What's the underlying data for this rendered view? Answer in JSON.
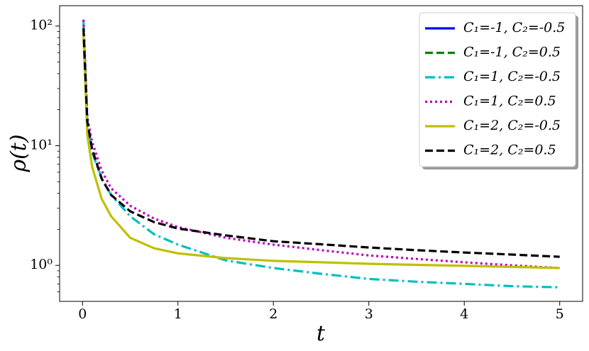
{
  "chart_data": {
    "type": "line",
    "x_label": "t",
    "y_label": "ρ(t)",
    "x": [
      0.01,
      0.05,
      0.1,
      0.2,
      0.3,
      0.5,
      0.75,
      1,
      1.5,
      2,
      2.5,
      3,
      3.5,
      4,
      4.5,
      5
    ],
    "series": [
      {
        "name": "C₁=-1, C₂=-0.5",
        "color": "#0000ff",
        "linestyle": "solid",
        "values": [
          null,
          null,
          null,
          null,
          null,
          null,
          null,
          null,
          null,
          null,
          null,
          null,
          null,
          null,
          null,
          null
        ]
      },
      {
        "name": "C₁=-1, C₂=0.5",
        "color": "#008000",
        "linestyle": "dashed",
        "values": [
          null,
          null,
          null,
          null,
          null,
          null,
          null,
          null,
          null,
          null,
          null,
          null,
          null,
          null,
          null,
          null
        ]
      },
      {
        "name": "C₁=1, C₂=-0.5",
        "color": "#00bfbf",
        "linestyle": "dashdot",
        "values": [
          113,
          16,
          8.8,
          5.4,
          3.87,
          2.57,
          1.82,
          1.49,
          1.1,
          0.95,
          0.85,
          0.77,
          0.73,
          0.7,
          0.67,
          0.655
        ]
      },
      {
        "name": "C₁=1, C₂=0.5",
        "color": "#bf00bf",
        "linestyle": "dotted",
        "values": [
          113,
          17.4,
          10.8,
          6.2,
          4.4,
          3.15,
          2.46,
          2.09,
          1.7,
          1.49,
          1.34,
          1.21,
          1.13,
          1.06,
          1.0,
          0.95
        ]
      },
      {
        "name": "C₁=2, C₂=-0.5",
        "color": "#bfbf00",
        "linestyle": "solid",
        "values": [
          84,
          12.4,
          6.7,
          3.6,
          2.57,
          1.7,
          1.39,
          1.26,
          1.15,
          1.09,
          1.06,
          1.03,
          1.01,
          0.99,
          0.97,
          0.95
        ]
      },
      {
        "name": "C₁=2, C₂=0.5",
        "color": "#000000",
        "linestyle": "dashed",
        "values": [
          96,
          16,
          9.4,
          5.3,
          3.87,
          2.83,
          2.3,
          2.03,
          1.78,
          1.59,
          1.5,
          1.41,
          1.34,
          1.28,
          1.23,
          1.18
        ]
      }
    ],
    "xlim": [
      -0.24,
      5.24
    ],
    "xticks": [
      0,
      1,
      2,
      3,
      4,
      5
    ],
    "ylim": [
      0.5,
      148
    ],
    "log_y": true,
    "yticks": [
      {
        "value": 1,
        "label": "10⁰"
      },
      {
        "value": 10,
        "label": "10¹"
      },
      {
        "value": 100,
        "label": "10²"
      }
    ],
    "legend": "upper right"
  }
}
